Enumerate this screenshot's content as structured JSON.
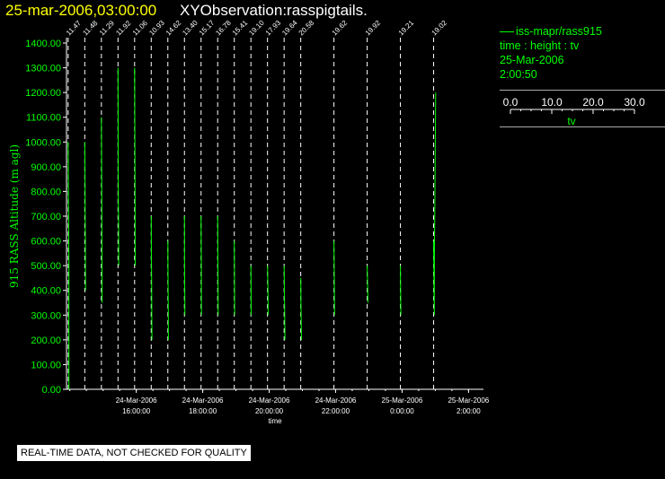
{
  "header": {
    "date_label": "25-mar-2006,03:00:00",
    "observation_label": "XYObservation:rasspigtails."
  },
  "info_panel": {
    "series_label": "iss-mapr/rass915",
    "plot_kind": "time : height : tv",
    "date": "25-Mar-2006",
    "time": "2:00:50",
    "scale_ticks": [
      "0.0",
      "10.0",
      "20.0",
      "30.0"
    ],
    "scale_label": "tv"
  },
  "notice": "REAL-TIME DATA, NOT CHECKED FOR QUALITY",
  "colors": {
    "data": "#00ff00",
    "title": "#ffff00",
    "background": "#000000",
    "axis": "#ffffff"
  },
  "chart_data": {
    "type": "line",
    "ylabel": "915 RASS Altitude (m agl)",
    "xlabel": "time",
    "ylim": [
      0,
      1400
    ],
    "xlim": [
      13.9,
      26.45
    ],
    "y_ticks": [
      0,
      100,
      200,
      300,
      400,
      500,
      600,
      700,
      800,
      900,
      1000,
      1100,
      1200,
      1300,
      1400
    ],
    "y_tick_labels": [
      "0.00",
      "100.00",
      "200.00",
      "300.00",
      "400.00",
      "500.00",
      "600.00",
      "700.00",
      "800.00",
      "900.00",
      "1000.00",
      "1100.00",
      "1200.00",
      "1300.00",
      "1400.00"
    ],
    "x_ticks": [
      {
        "value": 16,
        "date": "24-Mar-2006",
        "time": "16:00:00"
      },
      {
        "value": 18,
        "date": "24-Mar-2006",
        "time": "18:00:00"
      },
      {
        "value": 20,
        "date": "24-Mar-2006",
        "time": "20:00:00"
      },
      {
        "value": 22,
        "date": "24-Mar-2006",
        "time": "22:00:00"
      },
      {
        "value": 24,
        "date": "25-Mar-2006",
        "time": "0:00:00"
      },
      {
        "value": 26,
        "date": "25-Mar-2006",
        "time": "2:00:00"
      }
    ],
    "profiles": [
      {
        "label": "11.47",
        "t": 13.95,
        "points": [
          [
            0,
            1000
          ],
          [
            0.2,
            900
          ],
          [
            0.35,
            800
          ],
          [
            0.5,
            700
          ],
          [
            0.8,
            600
          ],
          [
            1.0,
            500
          ],
          [
            1.1,
            400
          ],
          [
            0.9,
            300
          ],
          [
            1.0,
            200
          ],
          [
            1.1,
            100
          ],
          [
            1.0,
            0
          ]
        ]
      },
      {
        "label": "11.48",
        "t": 14.45,
        "points": [
          [
            0,
            1000
          ],
          [
            0.3,
            900
          ],
          [
            0.4,
            800
          ],
          [
            0.6,
            700
          ],
          [
            0.8,
            600
          ],
          [
            1.0,
            500
          ],
          [
            1.1,
            400
          ]
        ]
      },
      {
        "label": "11.29",
        "t": 14.95,
        "points": [
          [
            0,
            1100
          ],
          [
            0.3,
            900
          ],
          [
            0.5,
            800
          ],
          [
            0.7,
            600
          ],
          [
            0.9,
            400
          ],
          [
            1.0,
            350
          ]
        ]
      },
      {
        "label": "11.92",
        "t": 15.45,
        "points": [
          [
            0,
            1300
          ],
          [
            0.2,
            1000
          ],
          [
            0.3,
            900
          ],
          [
            0.5,
            750
          ],
          [
            0.7,
            700
          ],
          [
            0.9,
            600
          ],
          [
            1.0,
            500
          ]
        ]
      },
      {
        "label": "11.06",
        "t": 15.95,
        "points": [
          [
            0,
            1300
          ],
          [
            0.3,
            1100
          ],
          [
            0.5,
            900
          ],
          [
            0.7,
            700
          ],
          [
            0.8,
            600
          ],
          [
            1.0,
            500
          ]
        ]
      },
      {
        "label": "10.93",
        "t": 16.45,
        "points": [
          [
            0,
            700
          ],
          [
            0.2,
            600
          ],
          [
            0.4,
            500
          ],
          [
            0.6,
            400
          ],
          [
            0.8,
            300
          ],
          [
            1.0,
            200
          ]
        ]
      },
      {
        "label": "14.62",
        "t": 16.95,
        "points": [
          [
            0,
            600
          ],
          [
            0.2,
            500
          ],
          [
            0.4,
            400
          ],
          [
            0.6,
            300
          ],
          [
            0.7,
            250
          ],
          [
            0.8,
            200
          ]
        ]
      },
      {
        "label": "13.40",
        "t": 17.45,
        "points": [
          [
            0,
            700
          ],
          [
            0.2,
            500
          ],
          [
            0.4,
            400
          ],
          [
            0.5,
            350
          ],
          [
            0.6,
            300
          ]
        ]
      },
      {
        "label": "15.17",
        "t": 17.95,
        "points": [
          [
            0,
            700
          ],
          [
            0.2,
            600
          ],
          [
            0.4,
            500
          ],
          [
            0.5,
            400
          ],
          [
            0.6,
            300
          ]
        ]
      },
      {
        "label": "16.78",
        "t": 18.45,
        "points": [
          [
            0,
            700
          ],
          [
            0.2,
            600
          ],
          [
            0.4,
            500
          ],
          [
            0.6,
            400
          ],
          [
            0.7,
            300
          ]
        ]
      },
      {
        "label": "15.41",
        "t": 18.95,
        "points": [
          [
            0,
            600
          ],
          [
            0.2,
            500
          ],
          [
            0.4,
            400
          ],
          [
            0.5,
            300
          ]
        ]
      },
      {
        "label": "19.10",
        "t": 19.45,
        "points": [
          [
            0,
            500
          ],
          [
            0.2,
            400
          ],
          [
            0.4,
            300
          ]
        ]
      },
      {
        "label": "17.93",
        "t": 19.95,
        "points": [
          [
            0,
            500
          ],
          [
            0.3,
            450
          ],
          [
            0.6,
            400
          ],
          [
            0.9,
            300
          ]
        ]
      },
      {
        "label": "19.64",
        "t": 20.45,
        "points": [
          [
            0,
            500
          ],
          [
            0.4,
            400
          ],
          [
            0.8,
            300
          ],
          [
            1.2,
            200
          ]
        ]
      },
      {
        "label": "20.58",
        "t": 20.95,
        "points": [
          [
            0,
            450
          ],
          [
            0.3,
            350
          ],
          [
            0.6,
            300
          ],
          [
            1.0,
            200
          ]
        ]
      },
      {
        "label": "19.62",
        "t": 21.95,
        "points": [
          [
            0,
            600
          ],
          [
            0.3,
            500
          ],
          [
            0.6,
            400
          ],
          [
            0.8,
            300
          ]
        ]
      },
      {
        "label": "19.92",
        "t": 22.95,
        "points": [
          [
            0,
            500
          ],
          [
            0.4,
            450
          ],
          [
            0.8,
            400
          ],
          [
            1.0,
            350
          ]
        ]
      },
      {
        "label": "19.21",
        "t": 23.95,
        "points": [
          [
            0,
            500
          ],
          [
            0.3,
            400
          ],
          [
            0.6,
            300
          ]
        ]
      },
      {
        "label": "19.02",
        "t": 24.95,
        "points": [
          [
            0,
            600
          ],
          [
            0.3,
            500
          ],
          [
            0.6,
            400
          ],
          [
            0.9,
            300
          ],
          [
            1.2,
            600
          ],
          [
            1.5,
            700
          ],
          [
            2.0,
            900
          ],
          [
            2.5,
            1100
          ],
          [
            2.8,
            1200
          ]
        ]
      }
    ]
  }
}
